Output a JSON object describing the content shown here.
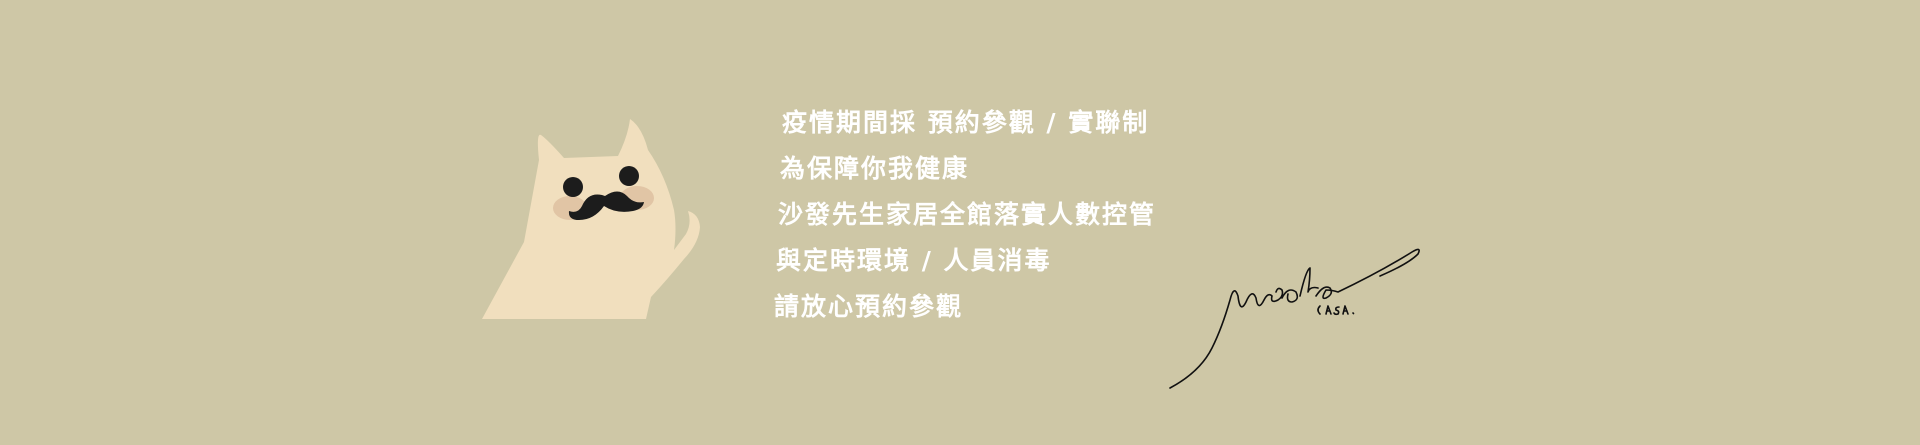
{
  "banner": {
    "background_color": "#cec7a6",
    "notice_lines": [
      "疫情期間採 預約參觀 / 實聯制",
      "為保障你我健康",
      "沙發先生家居全館落實人數控管",
      "與定時環境 / 人員消毒",
      "請放心預約參觀"
    ],
    "mascot": {
      "icon": "mustache-cat-icon",
      "body_color": "#f1dfbe",
      "cheek_color": "#e0c4a6"
    },
    "signature": {
      "icon": "handwritten-signature-logo",
      "text": "Mrsofa CASA."
    }
  }
}
